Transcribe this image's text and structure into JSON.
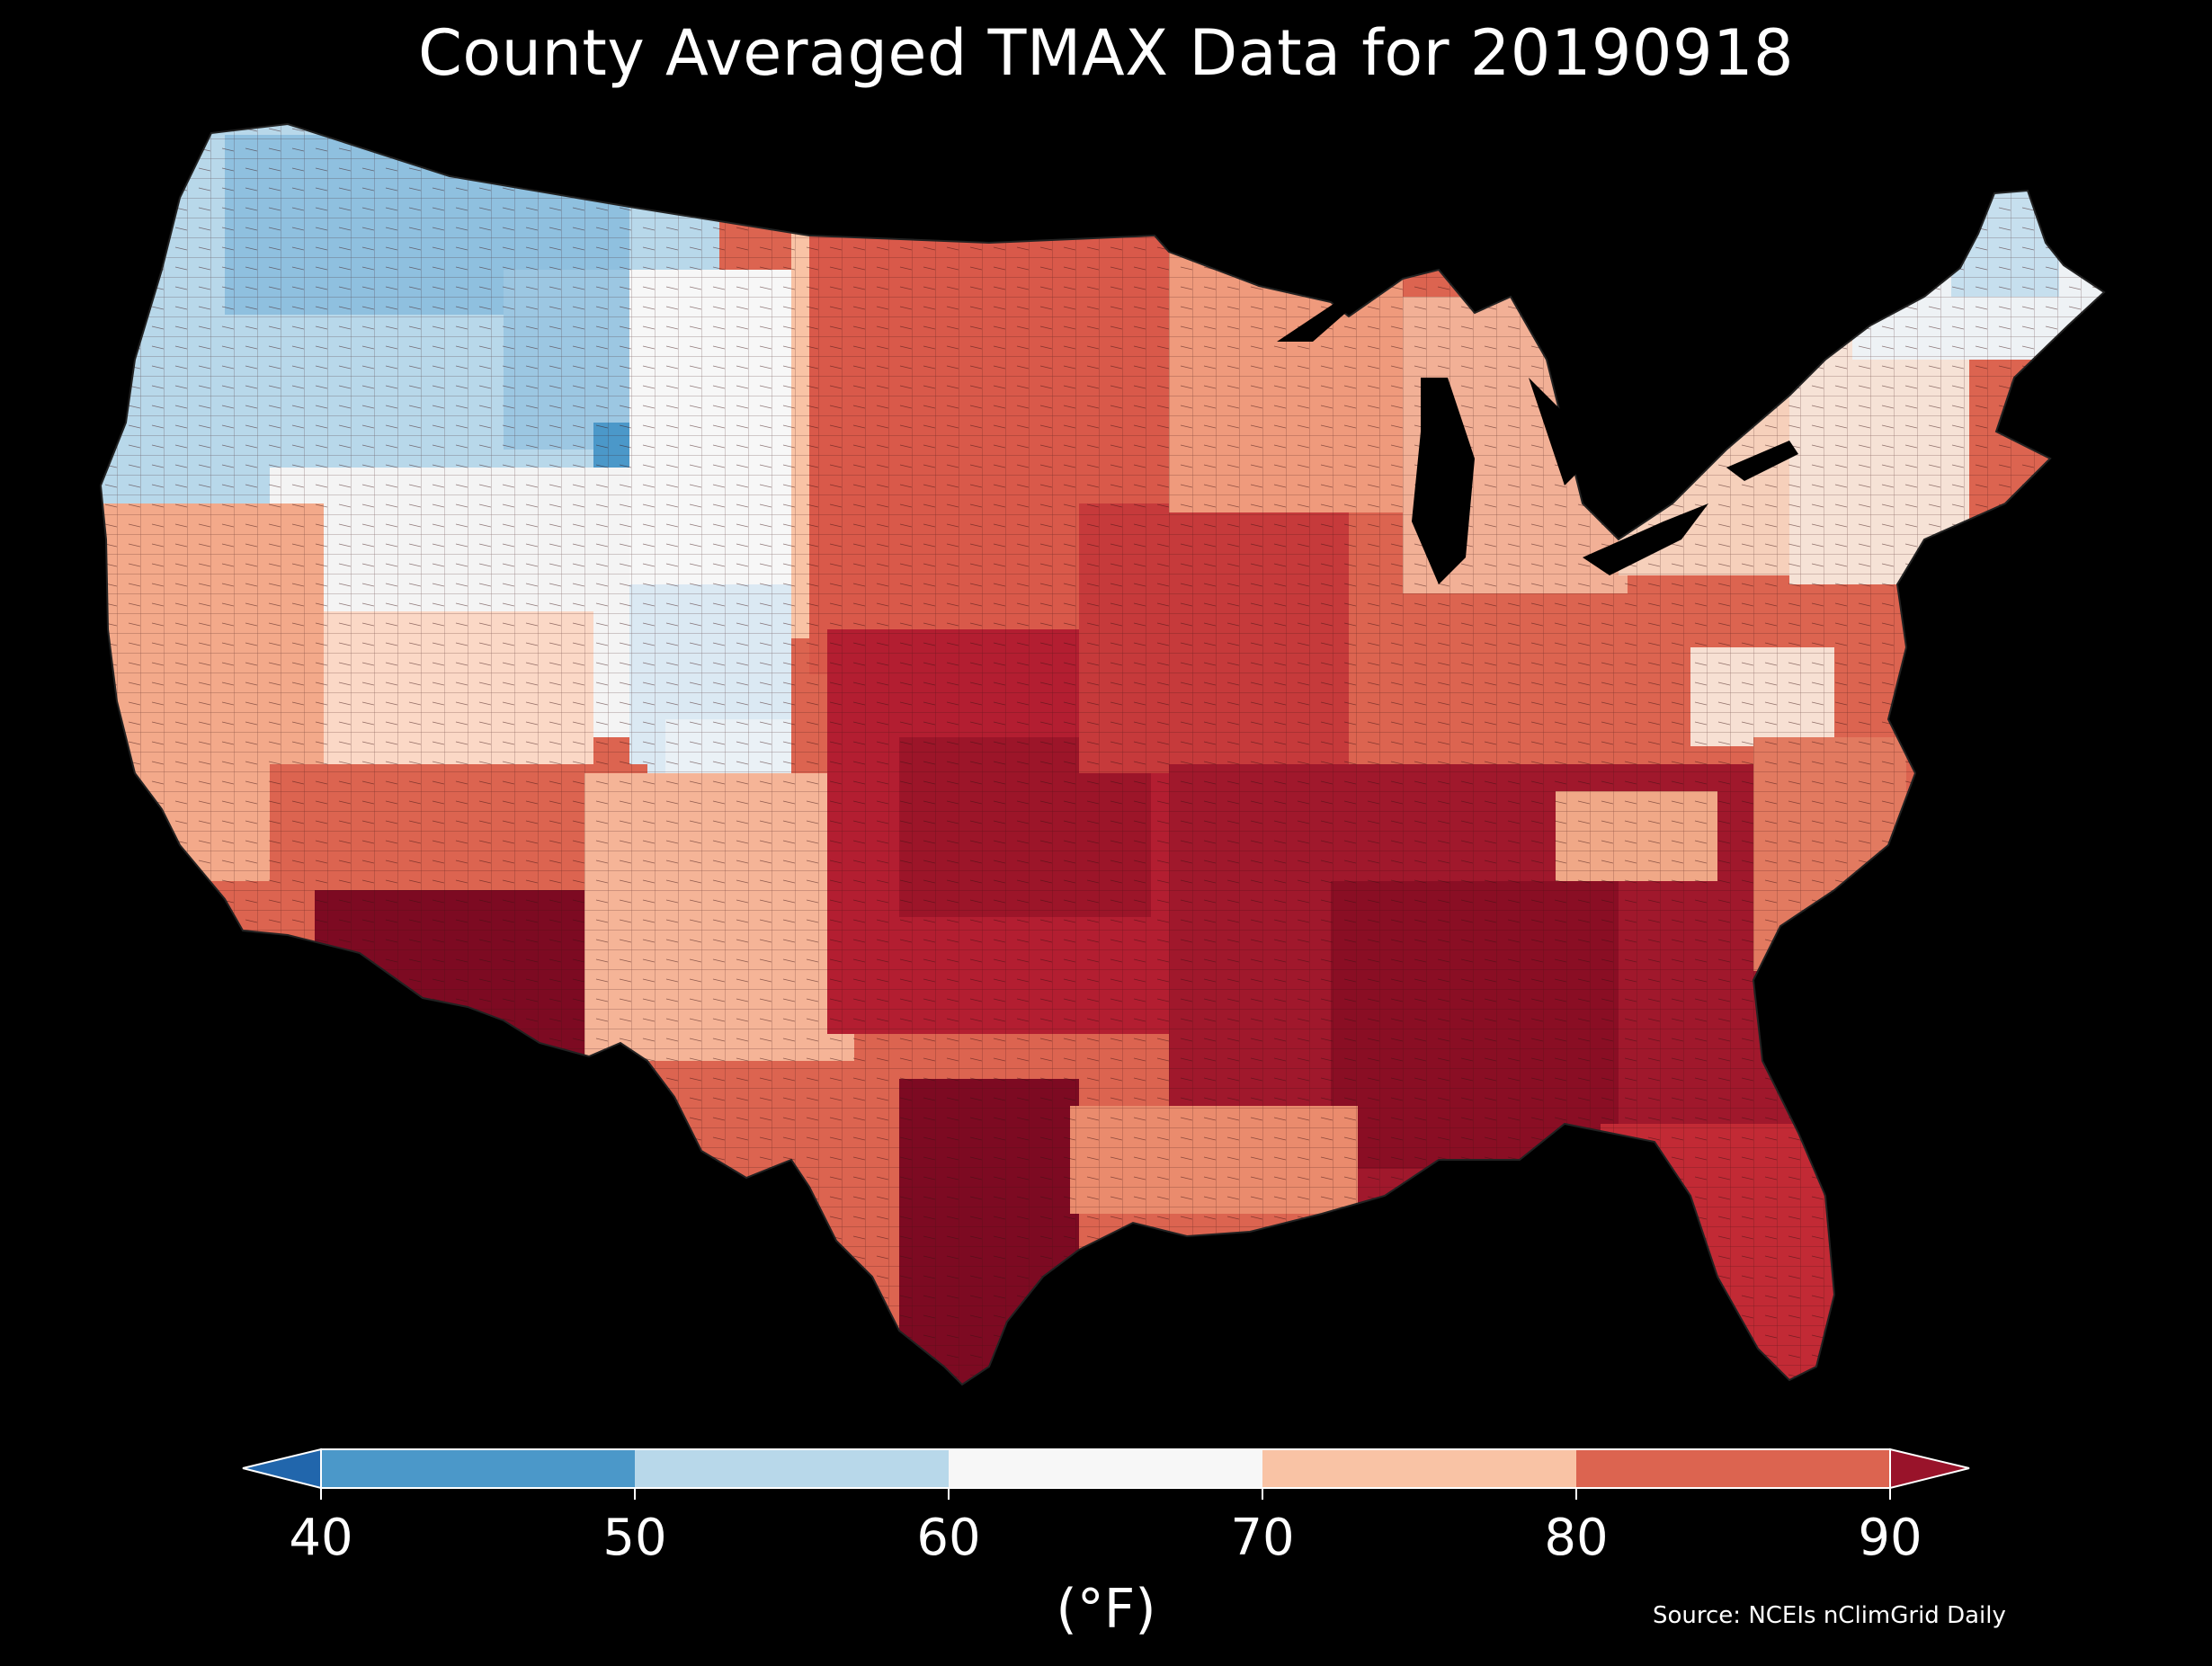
{
  "title": "County Averaged TMAX Data for 20190918",
  "colorbar": {
    "unit": "(°F)",
    "ticks": [
      "40",
      "50",
      "60",
      "70",
      "80",
      "90"
    ],
    "bins": [
      {
        "name": "below-40",
        "color": "#2166ac"
      },
      {
        "name": "40-50",
        "color": "#4b98c9"
      },
      {
        "name": "50-60",
        "color": "#b8d8ea"
      },
      {
        "name": "60-70",
        "color": "#f7f7f7"
      },
      {
        "name": "70-80",
        "color": "#f9c3a5"
      },
      {
        "name": "80-90",
        "color": "#dc6450"
      },
      {
        "name": "above-90",
        "color": "#99132a"
      }
    ]
  },
  "source": "Source: NCEIs nClimGrid Daily",
  "region_colors": {
    "pacific_northwest": "#b8d8ea",
    "rockies_cold": "#8fc0df",
    "great_basin": "#f4f4f4",
    "california_coast": "#f3a98a",
    "desert_southwest": "#7d0a22",
    "plains": "#dc6450",
    "midwest_hot": "#b31e31",
    "southeast_hot": "#8a0e24",
    "northeast_cool": "#f6e2d6",
    "new_england": "#dbe9f3",
    "appalachian": "#f6cdb6"
  }
}
